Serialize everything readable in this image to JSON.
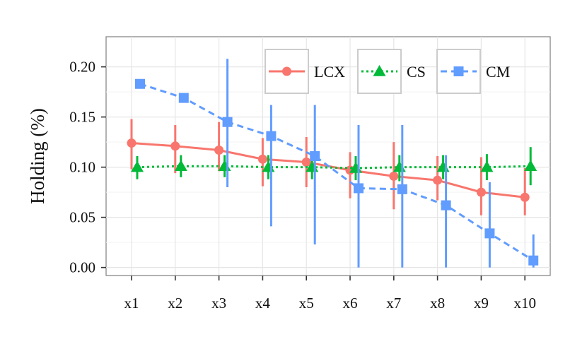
{
  "chart_data": {
    "type": "line",
    "ylabel": "Holding (%)",
    "xlabel": "",
    "categories": [
      "x1",
      "x2",
      "x3",
      "x4",
      "x5",
      "x6",
      "x7",
      "x8",
      "x9",
      "x10"
    ],
    "ylim": [
      -0.008,
      0.23
    ],
    "yticks": [
      0.0,
      0.05,
      0.1,
      0.15,
      0.2
    ],
    "ytick_labels": [
      "0.00",
      "0.05",
      "0.10",
      "0.15",
      "0.20"
    ],
    "grid": true,
    "legend_position": "top-right",
    "series": [
      {
        "name": "LCX",
        "color": "#F8766D",
        "line_style": "solid",
        "marker": "circle",
        "values": [
          0.124,
          0.121,
          0.117,
          0.108,
          0.105,
          0.097,
          0.091,
          0.087,
          0.075,
          0.07
        ],
        "error_low": [
          0.098,
          0.094,
          0.096,
          0.081,
          0.08,
          0.069,
          0.058,
          0.067,
          0.052,
          0.052
        ],
        "error_high": [
          0.148,
          0.142,
          0.145,
          0.129,
          0.13,
          0.115,
          0.125,
          0.111,
          0.11,
          0.099
        ]
      },
      {
        "name": "CS",
        "color": "#00BA38",
        "line_style": "dotted",
        "marker": "triangle",
        "values": [
          0.1,
          0.101,
          0.101,
          0.1,
          0.1,
          0.099,
          0.1,
          0.1,
          0.1,
          0.101
        ],
        "error_low": [
          0.088,
          0.09,
          0.09,
          0.088,
          0.088,
          0.087,
          0.086,
          0.088,
          0.087,
          0.082
        ],
        "error_high": [
          0.111,
          0.112,
          0.112,
          0.112,
          0.112,
          0.111,
          0.112,
          0.112,
          0.113,
          0.12
        ]
      },
      {
        "name": "CM",
        "color": "#619CFF",
        "line_style": "dashed",
        "marker": "square",
        "values": [
          0.183,
          0.169,
          0.145,
          0.131,
          0.111,
          0.079,
          0.078,
          0.062,
          0.034,
          0.007
        ],
        "error_low": [
          null,
          null,
          0.08,
          0.041,
          0.023,
          0.0,
          0.0,
          0.0,
          0.0,
          0.0
        ],
        "error_high": [
          null,
          null,
          0.208,
          0.162,
          0.162,
          0.142,
          0.142,
          0.112,
          0.085,
          0.033
        ]
      }
    ]
  }
}
